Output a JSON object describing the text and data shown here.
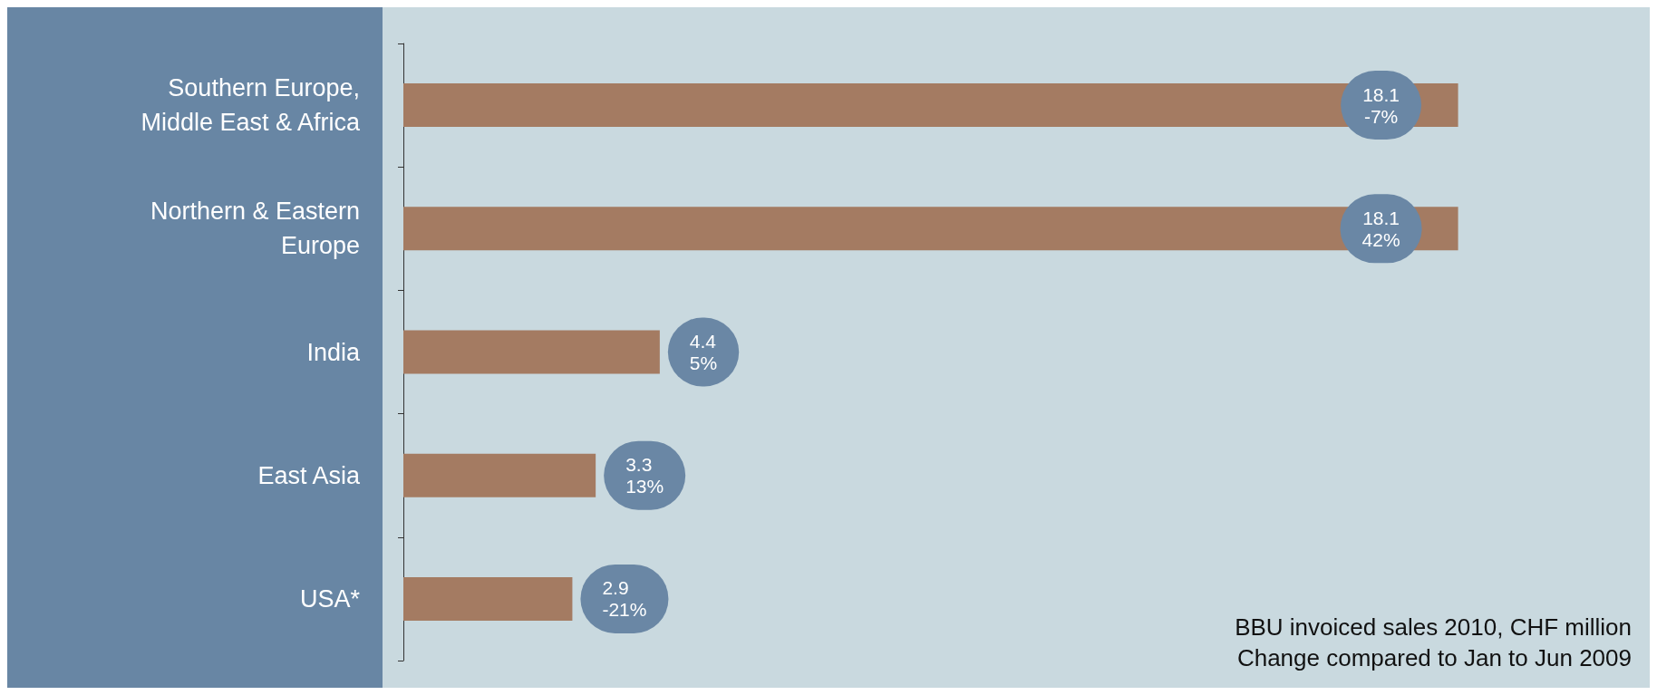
{
  "chart_data": {
    "type": "bar",
    "orientation": "horizontal",
    "categories": [
      "Southern Europe,\nMiddle East & Africa",
      "Northern & Eastern\nEurope",
      "India",
      "East Asia",
      "USA*"
    ],
    "values": [
      18.1,
      18.1,
      4.4,
      3.3,
      2.9
    ],
    "value_labels": [
      "18.1\n-7%",
      "18.1\n42%",
      "4.4\n5%",
      "3.3\n13%",
      "2.9\n-21%"
    ],
    "color": "#a47b62",
    "grid": false,
    "annotations": [
      "BBU invoiced sales 2010, CHF million",
      "Change compared to Jan to Jun 2009"
    ]
  }
}
